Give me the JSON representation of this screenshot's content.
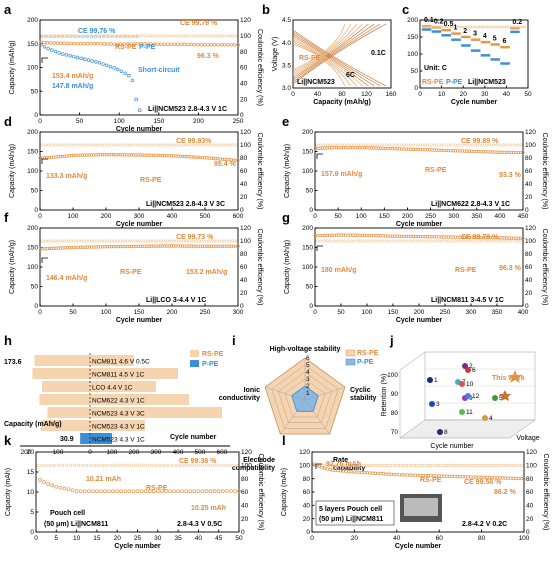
{
  "colors": {
    "rs_pe": "#e8964a",
    "rs_pe_ce": "#f0c89a",
    "p_pe": "#3b8fd6",
    "p_pe_ce": "#9cc8ee"
  },
  "axes": {
    "x": "Cycle number",
    "y_left": "Capacity (mAh/g)",
    "y_left_mah": "Capacity (mAh)",
    "y_right": "Coulombic efficiency (%)",
    "voltage": "Voltage (V)",
    "capacity_b": "Capacity (mAh/g)"
  },
  "chart_data": [
    {
      "id": "a",
      "type": "line",
      "xlim": [
        0,
        250
      ],
      "ylim": [
        0,
        200
      ],
      "y2lim": [
        0,
        120
      ],
      "xticks": [
        "0",
        "50",
        "100",
        "150",
        "200",
        "250"
      ],
      "yticks": [
        "0",
        "50",
        "100",
        "150",
        "200"
      ],
      "y2ticks": [
        "0",
        "20",
        "40",
        "60",
        "80",
        "100",
        "120"
      ],
      "series": [
        {
          "name": "RS-PE",
          "x": [
            1,
            10,
            25,
            50,
            75,
            100,
            125,
            150,
            175,
            200,
            225,
            250
          ],
          "y": [
            153.4,
            152,
            151,
            150,
            150,
            149,
            150,
            149,
            149,
            148,
            148,
            148
          ]
        },
        {
          "name": "P-PE",
          "x": [
            1,
            10,
            25,
            50,
            75,
            100,
            115,
            120,
            122,
            126
          ],
          "y": [
            147.8,
            140,
            130,
            120,
            110,
            95,
            80,
            60,
            20,
            10
          ]
        }
      ],
      "ce_labels": [
        "CE 99.76 %",
        "CE 99.78 %"
      ],
      "retention": "96.3 %",
      "annotations": [
        "153.4 mAh/g",
        "147.8 mAh/g",
        "Short-circuit"
      ],
      "legend": [
        "RS-PE",
        "P-PE"
      ],
      "condition": "Li||NCM523 2.8-4.3 V 1C"
    },
    {
      "id": "b",
      "type": "line",
      "xlim": [
        0,
        160
      ],
      "ylim": [
        3.0,
        4.5
      ],
      "xticks": [
        "0",
        "40",
        "80",
        "120",
        "160"
      ],
      "yticks": [
        "3.0",
        "3.5",
        "4.0",
        "4.5"
      ],
      "labels": [
        "RS-PE",
        "0.1C",
        "6C",
        "Li||NCM523"
      ]
    },
    {
      "id": "c",
      "type": "scatter",
      "xlim": [
        0,
        55
      ],
      "ylim": [
        0,
        200
      ],
      "xticks": [
        "0",
        "10",
        "20",
        "30",
        "40",
        "50"
      ],
      "yticks": [
        "0",
        "50",
        "100",
        "150",
        "200"
      ],
      "rates": [
        "0.1",
        "0.2",
        "0.5",
        "1",
        "2",
        "3",
        "4",
        "5",
        "6",
        "0.2"
      ],
      "series": [
        {
          "name": "RS-PE",
          "values": [
            182,
            178,
            170,
            160,
            150,
            142,
            135,
            128,
            120,
            176
          ]
        },
        {
          "name": "P-PE",
          "values": [
            172,
            166,
            155,
            142,
            125,
            110,
            96,
            84,
            72,
            165
          ]
        }
      ],
      "labels": [
        "Unit: C",
        "RS-PE",
        "P-PE",
        "Li||NCM523"
      ]
    },
    {
      "id": "d",
      "type": "line",
      "xlim": [
        0,
        600
      ],
      "ylim": [
        0,
        200
      ],
      "xticks": [
        "0",
        "100",
        "200",
        "300",
        "400",
        "500",
        "600"
      ],
      "yticks": [
        "0",
        "50",
        "100",
        "150",
        "200"
      ],
      "series": [
        {
          "name": "RS-PE",
          "x": [
            1,
            50,
            100,
            200,
            300,
            400,
            500,
            600
          ],
          "y": [
            133.3,
            136,
            140,
            142,
            141,
            139,
            134,
            127.2
          ]
        }
      ],
      "ce": "CE 99.93%",
      "retention": "95.4 %",
      "annotations": [
        "133.3 mAh/g",
        "RS-PE"
      ],
      "condition": "Li||NCM523 2.8-4.3 V 3C"
    },
    {
      "id": "e",
      "type": "line",
      "xlim": [
        0,
        450
      ],
      "ylim": [
        0,
        200
      ],
      "xticks": [
        "0",
        "50",
        "100",
        "150",
        "200",
        "250",
        "300",
        "350",
        "400",
        "450"
      ],
      "yticks": [
        "0",
        "50",
        "100",
        "150",
        "200"
      ],
      "series": [
        {
          "name": "RS-PE",
          "x": [
            1,
            50,
            100,
            150,
            200,
            250,
            300,
            350,
            400,
            450
          ],
          "y": [
            157.9,
            160,
            160,
            158,
            156,
            154,
            152,
            150,
            148,
            147.3
          ]
        }
      ],
      "ce": "CE 99.89 %",
      "retention": "93.3 %",
      "annotations": [
        "157.9 mAh/g",
        "RS-PE"
      ],
      "condition": "Li||NCM622 2.8-4.3 V 1C"
    },
    {
      "id": "f",
      "type": "line",
      "xlim": [
        0,
        300
      ],
      "ylim": [
        0,
        200
      ],
      "xticks": [
        "0",
        "50",
        "100",
        "150",
        "200",
        "250",
        "300"
      ],
      "yticks": [
        "0",
        "50",
        "100",
        "150",
        "200"
      ],
      "series": [
        {
          "name": "RS-PE",
          "x": [
            1,
            50,
            100,
            150,
            200,
            250,
            300
          ],
          "y": [
            146.4,
            150,
            152,
            153,
            154,
            153,
            153.2
          ]
        }
      ],
      "ce": "CE 99.73 %",
      "annotations": [
        "146.4 mAh/g",
        "RS-PE",
        "153.2 mAh/g"
      ],
      "condition": "Li||LCO 3-4.4 V 1C"
    },
    {
      "id": "g",
      "type": "line",
      "xlim": [
        0,
        400
      ],
      "ylim": [
        0,
        200
      ],
      "xticks": [
        "0",
        "50",
        "100",
        "150",
        "200",
        "250",
        "300",
        "350",
        "400"
      ],
      "yticks": [
        "0",
        "50",
        "100",
        "150",
        "200"
      ],
      "series": [
        {
          "name": "RS-PE",
          "x": [
            1,
            50,
            100,
            150,
            200,
            250,
            300,
            350,
            400
          ],
          "y": [
            180,
            182,
            181,
            179,
            178,
            177,
            176,
            175,
            173.3
          ]
        }
      ],
      "ce": "CE 99.79 %",
      "retention": "96.3 %",
      "annotations": [
        "180 mAh/g",
        "RS-PE"
      ],
      "condition": "Li||NCM811 3-4.5 V 1C"
    },
    {
      "id": "h",
      "type": "bar",
      "categories": [
        "NCM811 4.6 V 0.5C",
        "NCM811 4.5 V 1C",
        "LCO 4.4 V 1C",
        "NCM622 4.3 V 1C",
        "NCM523 4.3 V 3C",
        "NCM523 4.3 V 1C",
        "NCM523 4.3 V 1C"
      ],
      "series": [
        {
          "name": "RS-PE",
          "capacity": [
            173.6,
            180,
            150,
            158,
            133,
            153,
            0
          ],
          "cycles": [
            200,
            400,
            300,
            450,
            600,
            250,
            0
          ]
        },
        {
          "name": "P-PE",
          "capacity": [
            0,
            0,
            0,
            0,
            0,
            0,
            30.9
          ],
          "cycles": [
            0,
            0,
            0,
            0,
            0,
            0,
            0
          ]
        }
      ],
      "labels": [
        "173.6",
        "30.9",
        "NCM523",
        "Capacity (mAh/g)",
        "Cycle number"
      ],
      "xticks_left": [
        "200",
        "100",
        "0"
      ],
      "xticks_right": [
        "100",
        "200",
        "300",
        "400",
        "500",
        "600"
      ]
    },
    {
      "id": "i",
      "type": "radar",
      "axes": [
        "High-voltage stability",
        "Cyclic stability",
        "Rate capability",
        "Electrode compatibility",
        "Ionic conductivity"
      ],
      "levels": [
        "1",
        "2",
        "3",
        "4",
        "5",
        "6"
      ],
      "series": [
        {
          "name": "RS-PE",
          "values": [
            6,
            6,
            6,
            6,
            6
          ]
        },
        {
          "name": "P-PE",
          "values": [
            2,
            2,
            2,
            2,
            2
          ]
        }
      ]
    },
    {
      "id": "j",
      "type": "scatter",
      "ylabel": "Retention (%)",
      "zlabel": "Voltage",
      "xlabel": "Cycle number",
      "yticks": [
        "70",
        "80",
        "90",
        "100"
      ],
      "points": [
        "1",
        "2",
        "3",
        "4",
        "5",
        "6",
        "7",
        "8",
        "9",
        "10",
        "11",
        "12"
      ],
      "highlight": "This work"
    },
    {
      "id": "k",
      "type": "line",
      "xlim": [
        0,
        50
      ],
      "ylim": [
        0,
        20
      ],
      "xticks": [
        "0",
        "5",
        "10",
        "15",
        "20",
        "25",
        "30",
        "35",
        "40",
        "45",
        "50"
      ],
      "yticks": [
        "0",
        "5",
        "10",
        "15",
        "20"
      ],
      "series": [
        {
          "name": "RS-PE",
          "x": [
            1,
            3,
            5,
            8,
            10,
            15,
            20,
            30,
            40,
            50
          ],
          "y": [
            13,
            12,
            11.3,
            10.7,
            10.21,
            10.2,
            10.2,
            10.2,
            10.2,
            10.25
          ]
        }
      ],
      "ce": "CE 99.38 %",
      "annotations": [
        "10.21 mAh",
        "RS-PE",
        "10.25 mAh",
        "Pouch cell",
        "(50 μm) Li||NCM811"
      ],
      "condition": "2.8-4.3 V 0.5C"
    },
    {
      "id": "l",
      "type": "line",
      "xlim": [
        0,
        100
      ],
      "ylim": [
        0,
        120
      ],
      "xticks": [
        "0",
        "20",
        "40",
        "60",
        "80",
        "100"
      ],
      "yticks": [
        "0",
        "20",
        "40",
        "60",
        "80",
        "100",
        "120"
      ],
      "series": [
        {
          "name": "RS-PE",
          "x": [
            1,
            5,
            10,
            20,
            40,
            60,
            80,
            100
          ],
          "y": [
            102,
            96,
            92.75,
            90,
            86,
            84,
            82,
            80
          ]
        }
      ],
      "ce": "CE 99.58 %",
      "retention": "86.2 %",
      "annotations": [
        "92.75 mAh",
        "RS-PE",
        "5 layers Pouch cell",
        "(50 μm) Li||NCM811"
      ],
      "condition": "2.8-4.2 V 0.2C"
    }
  ]
}
